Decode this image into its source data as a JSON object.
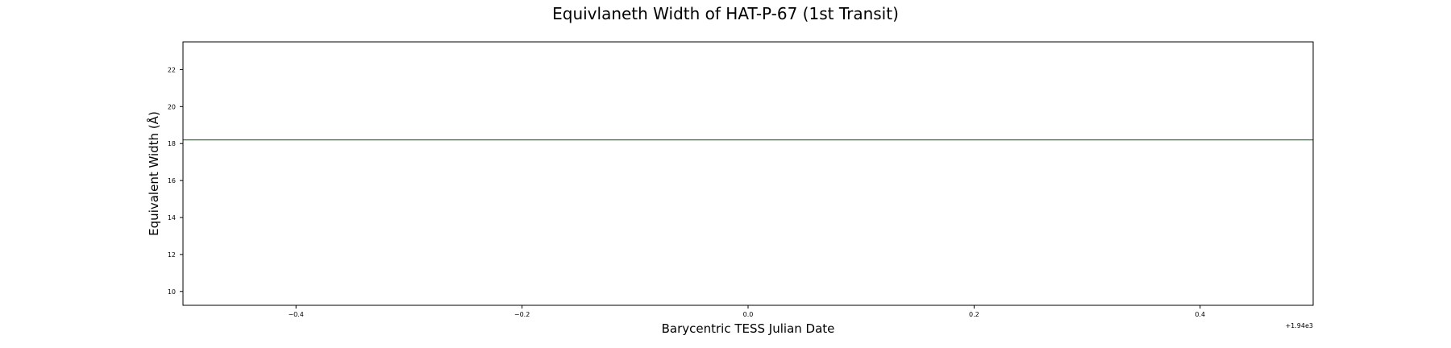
{
  "chart_data": {
    "type": "line",
    "title": "Equivlaneth Width of HAT-P-67 (1st Transit)",
    "xlabel": "Barycentric TESS Julian Date",
    "ylabel": "Equivalent Width (Å)",
    "x_offset_label": "+1.94e3",
    "xlim": [
      -0.5,
      0.5
    ],
    "ylim": [
      9.25,
      23.5
    ],
    "x_ticks": [
      -0.4,
      -0.2,
      0.0,
      0.2,
      0.4
    ],
    "x_tick_labels": [
      "−0.4",
      "−0.2",
      "0.0",
      "0.2",
      "0.4"
    ],
    "y_ticks": [
      10,
      12,
      14,
      16,
      18,
      20,
      22
    ],
    "y_tick_labels": [
      "10",
      "12",
      "14",
      "16",
      "18",
      "20",
      "22"
    ],
    "grid": false,
    "legend": "none",
    "series": [
      {
        "color": "#2e7d32",
        "x": [
          -0.5,
          0.5
        ],
        "values": [
          18.2,
          18.2
        ]
      }
    ]
  }
}
